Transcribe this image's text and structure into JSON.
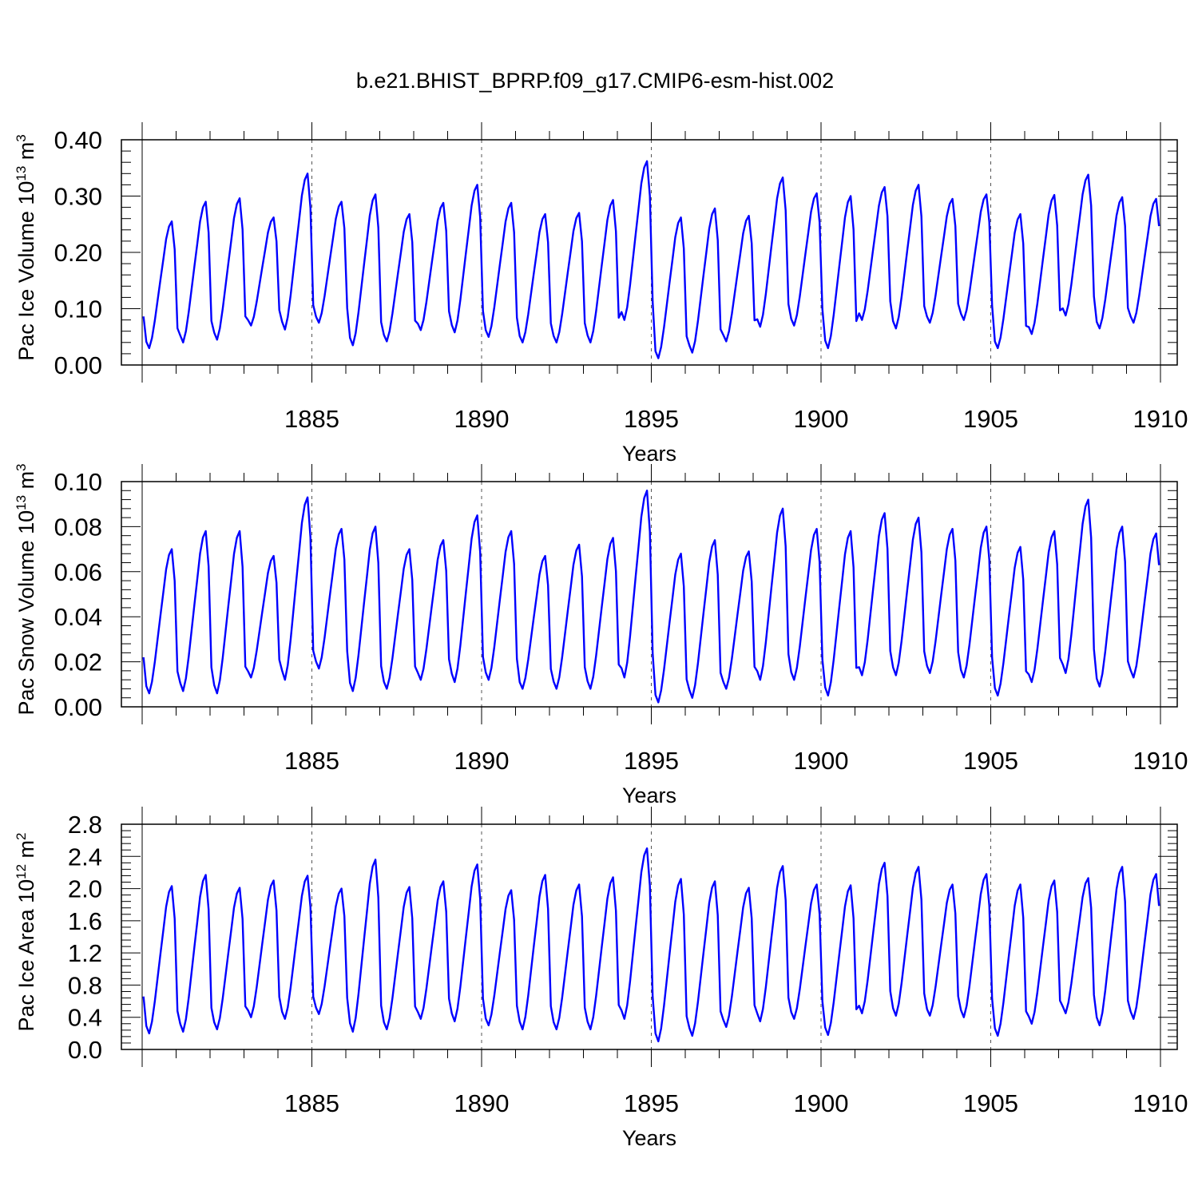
{
  "title": "b.e21.BHIST_BPRP.f09_g17.CMIP6-esm-hist.002",
  "colors": {
    "series": "#0000ff",
    "axis": "#000000",
    "refline": "#555555"
  },
  "chart_data": [
    {
      "type": "line",
      "ylabel_main": "Pac Ice Volume 10",
      "ylabel_exp": "13",
      "ylabel_unit": " m",
      "ylabel_unit_exp": "3",
      "xlabel": "Years",
      "xlim": [
        1880,
        1910
      ],
      "ylim": [
        0.0,
        0.4
      ],
      "yticks": [
        "0.00",
        "0.10",
        "0.20",
        "0.30",
        "0.40"
      ],
      "ytick_values": [
        0.0,
        0.1,
        0.2,
        0.3,
        0.4
      ],
      "xtick_labels": [
        "1885",
        "1890",
        "1895",
        "1900",
        "1905",
        "1910"
      ],
      "xtick_values": [
        1885,
        1890,
        1895,
        1900,
        1905,
        1910
      ],
      "start_year": 1880.04,
      "months": 360,
      "annual_min": [
        0.03,
        0.04,
        0.045,
        0.07,
        0.063,
        0.075,
        0.035,
        0.042,
        0.062,
        0.058,
        0.05,
        0.04,
        0.04,
        0.04,
        0.08,
        0.012,
        0.022,
        0.042,
        0.068,
        0.07,
        0.03,
        0.08,
        0.065,
        0.075,
        0.08,
        0.03,
        0.055,
        0.088,
        0.065,
        0.075
      ],
      "annual_max": [
        0.255,
        0.29,
        0.296,
        0.262,
        0.34,
        0.29,
        0.303,
        0.268,
        0.288,
        0.32,
        0.288,
        0.268,
        0.27,
        0.293,
        0.362,
        0.262,
        0.278,
        0.265,
        0.333,
        0.305,
        0.3,
        0.316,
        0.32,
        0.295,
        0.303,
        0.268,
        0.302,
        0.338,
        0.298,
        0.295
      ]
    },
    {
      "type": "line",
      "ylabel_main": "Pac Snow Volume 10",
      "ylabel_exp": "13",
      "ylabel_unit": " m",
      "ylabel_unit_exp": "3",
      "xlabel": "Years",
      "xlim": [
        1880,
        1910
      ],
      "ylim": [
        0.0,
        0.1
      ],
      "yticks": [
        "0.00",
        "0.02",
        "0.04",
        "0.06",
        "0.08",
        "0.10"
      ],
      "ytick_values": [
        0.0,
        0.02,
        0.04,
        0.06,
        0.08,
        0.1
      ],
      "xtick_labels": [
        "1885",
        "1890",
        "1895",
        "1900",
        "1905",
        "1910"
      ],
      "xtick_values": [
        1885,
        1890,
        1895,
        1900,
        1905,
        1910
      ],
      "start_year": 1880.04,
      "months": 360,
      "annual_min": [
        0.006,
        0.007,
        0.006,
        0.013,
        0.012,
        0.017,
        0.007,
        0.008,
        0.012,
        0.011,
        0.012,
        0.008,
        0.008,
        0.008,
        0.013,
        0.002,
        0.004,
        0.008,
        0.012,
        0.012,
        0.005,
        0.014,
        0.014,
        0.015,
        0.013,
        0.005,
        0.011,
        0.015,
        0.009,
        0.013
      ],
      "annual_max": [
        0.07,
        0.078,
        0.078,
        0.067,
        0.093,
        0.079,
        0.08,
        0.07,
        0.074,
        0.085,
        0.078,
        0.067,
        0.072,
        0.075,
        0.096,
        0.068,
        0.074,
        0.069,
        0.088,
        0.079,
        0.078,
        0.086,
        0.084,
        0.079,
        0.08,
        0.071,
        0.078,
        0.092,
        0.08,
        0.077
      ]
    },
    {
      "type": "line",
      "ylabel_main": "Pac Ice Area 10",
      "ylabel_exp": "12",
      "ylabel_unit": " m",
      "ylabel_unit_exp": "2",
      "xlabel": "Years",
      "xlim": [
        1880,
        1910
      ],
      "ylim": [
        0.0,
        2.8
      ],
      "yticks": [
        "0.0",
        "0.4",
        "0.8",
        "1.2",
        "1.6",
        "2.0",
        "2.4",
        "2.8"
      ],
      "ytick_values": [
        0.0,
        0.4,
        0.8,
        1.2,
        1.6,
        2.0,
        2.4,
        2.8
      ],
      "xtick_labels": [
        "1885",
        "1890",
        "1895",
        "1900",
        "1905",
        "1910"
      ],
      "xtick_values": [
        1885,
        1890,
        1895,
        1900,
        1905,
        1910
      ],
      "start_year": 1880.04,
      "months": 360,
      "annual_min": [
        0.2,
        0.22,
        0.25,
        0.4,
        0.38,
        0.44,
        0.22,
        0.25,
        0.38,
        0.35,
        0.3,
        0.25,
        0.25,
        0.25,
        0.38,
        0.1,
        0.17,
        0.28,
        0.35,
        0.38,
        0.18,
        0.45,
        0.42,
        0.42,
        0.4,
        0.17,
        0.32,
        0.45,
        0.3,
        0.38
      ],
      "annual_max": [
        2.03,
        2.17,
        2.01,
        2.1,
        2.16,
        2.0,
        2.36,
        2.02,
        2.09,
        2.3,
        1.98,
        2.17,
        2.05,
        2.14,
        2.5,
        2.12,
        2.09,
        2.01,
        2.28,
        2.05,
        2.04,
        2.32,
        2.27,
        2.05,
        2.18,
        2.05,
        2.1,
        2.13,
        2.27,
        2.18
      ]
    }
  ]
}
